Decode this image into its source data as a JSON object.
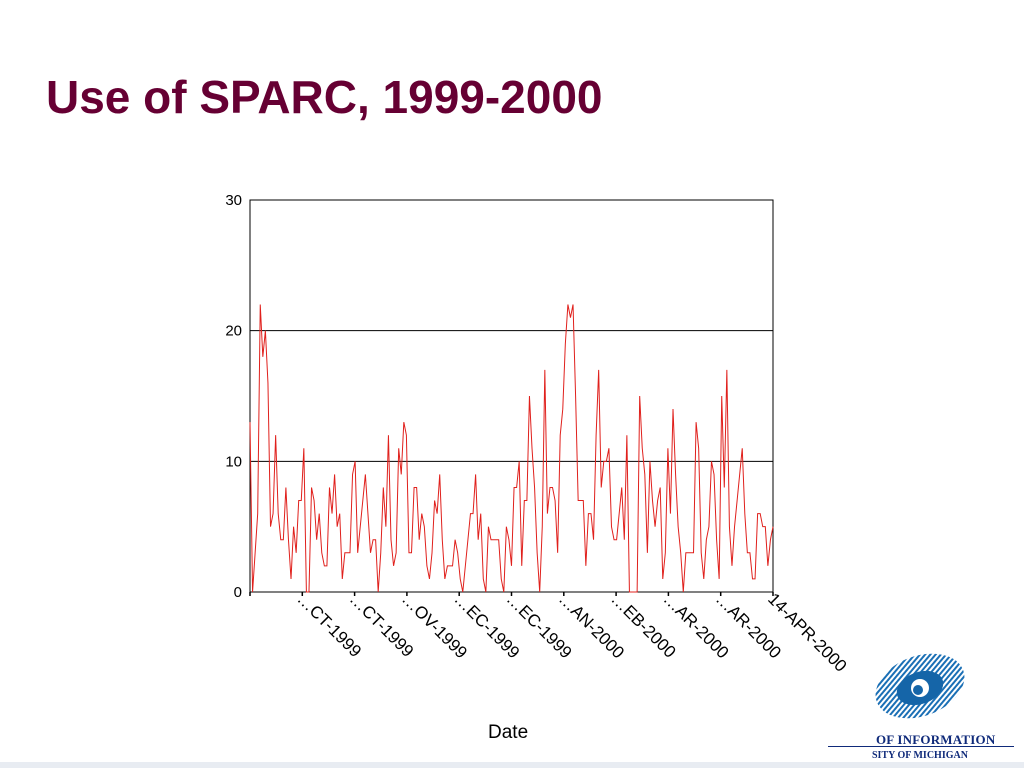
{
  "slide": {
    "title": "Use of SPARC, 1999-2000"
  },
  "chart_data": {
    "type": "line",
    "title": "Use of SPARC, 1999-2000",
    "xlabel": "Date",
    "ylabel": "",
    "ylim": [
      0,
      30
    ],
    "y_ticks": [
      0,
      10,
      20,
      30
    ],
    "grid": true,
    "color": "#e0201c",
    "x_tick_labels": [
      "…CT-1999",
      "…CT-1999",
      "…OV-1999",
      "…EC-1999",
      "…EC-1999",
      "…AN-2000",
      "…EB-2000",
      "…AR-2000",
      "…AR-2000",
      "14-APR-2000"
    ],
    "series": [
      {
        "name": "",
        "values": [
          13,
          0,
          3,
          6,
          22,
          18,
          20,
          16,
          5,
          6,
          12,
          6,
          4,
          4,
          8,
          4,
          1,
          5,
          3,
          7,
          7,
          11,
          0,
          0,
          8,
          7,
          4,
          6,
          3,
          2,
          2,
          8,
          6,
          9,
          5,
          6,
          1,
          3,
          3,
          3,
          9,
          10,
          3,
          5,
          7,
          9,
          6,
          3,
          4,
          4,
          0,
          3,
          8,
          5,
          12,
          4,
          2,
          3,
          11,
          9,
          13,
          12,
          3,
          3,
          8,
          8,
          4,
          6,
          5,
          2,
          1,
          3,
          7,
          6,
          9,
          4,
          1,
          2,
          2,
          2,
          4,
          3,
          1,
          0,
          2,
          4,
          6,
          6,
          9,
          4,
          6,
          1,
          0,
          5,
          4,
          4,
          4,
          4,
          1,
          0,
          5,
          4,
          2,
          8,
          8,
          10,
          2,
          7,
          7,
          15,
          11,
          8,
          3,
          0,
          5,
          17,
          6,
          8,
          8,
          7,
          3,
          12,
          14,
          19,
          22,
          21,
          22,
          15,
          7,
          7,
          7,
          2,
          6,
          6,
          4,
          12,
          17,
          8,
          10,
          10,
          11,
          5,
          4,
          4,
          6,
          8,
          4,
          12,
          0,
          0,
          0,
          0,
          15,
          11,
          9,
          3,
          10,
          7,
          5,
          7,
          8,
          1,
          3,
          11,
          6,
          14,
          9,
          5,
          3,
          0,
          3,
          3,
          3,
          3,
          13,
          11,
          3,
          1,
          4,
          5,
          10,
          9,
          4,
          1,
          15,
          8,
          17,
          5,
          2,
          5,
          7,
          9,
          11,
          6,
          3,
          3,
          1,
          1,
          6,
          6,
          5,
          5,
          2,
          4,
          5
        ]
      }
    ]
  },
  "logo": {
    "line1": "OF INFORMATION",
    "line2": "SITY OF MICHIGAN",
    "icon": "eye-logo-icon"
  }
}
